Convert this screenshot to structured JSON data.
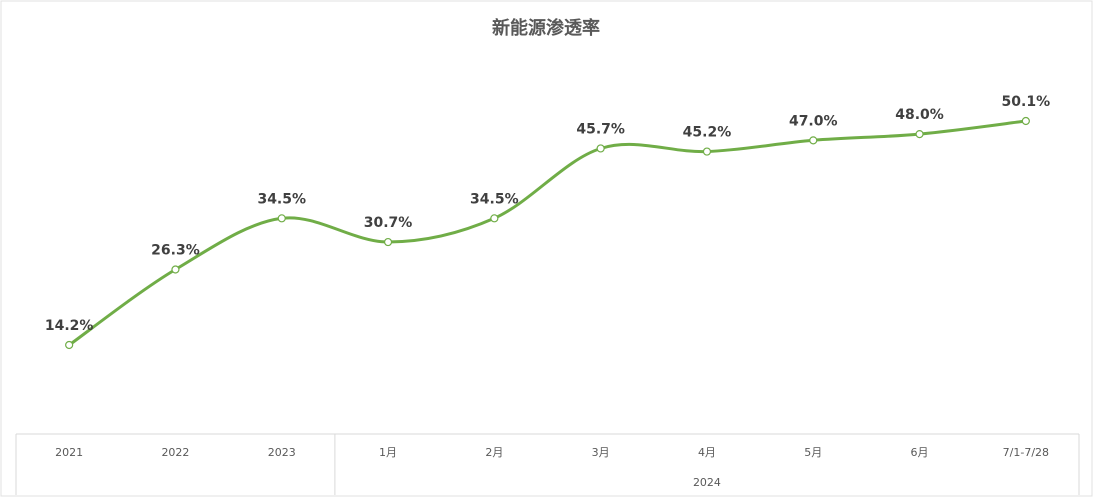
{
  "chart_data": {
    "type": "line",
    "title": "新能源渗透率",
    "xlabel": "",
    "ylabel": "",
    "categories": [
      "2021",
      "2022",
      "2023",
      "1月",
      "2月",
      "3月",
      "4月",
      "5月",
      "6月",
      "7/1-7/28"
    ],
    "category_groups": [
      {
        "label": "",
        "start": 0,
        "end": 2
      },
      {
        "label": "2024",
        "start": 3,
        "end": 9
      }
    ],
    "series": [
      {
        "values": [
          14.2,
          26.3,
          34.5,
          30.7,
          34.5,
          45.7,
          45.2,
          47.0,
          48.0,
          50.1
        ],
        "labels": [
          "14.2%",
          "26.3%",
          "34.5%",
          "30.7%",
          "34.5%",
          "45.7%",
          "45.2%",
          "47.0%",
          "48.0%",
          "50.1%"
        ],
        "color": "#70ad47"
      }
    ],
    "ylim": [
      0,
      60
    ],
    "smooth": true,
    "grid": false,
    "legend": "none"
  }
}
